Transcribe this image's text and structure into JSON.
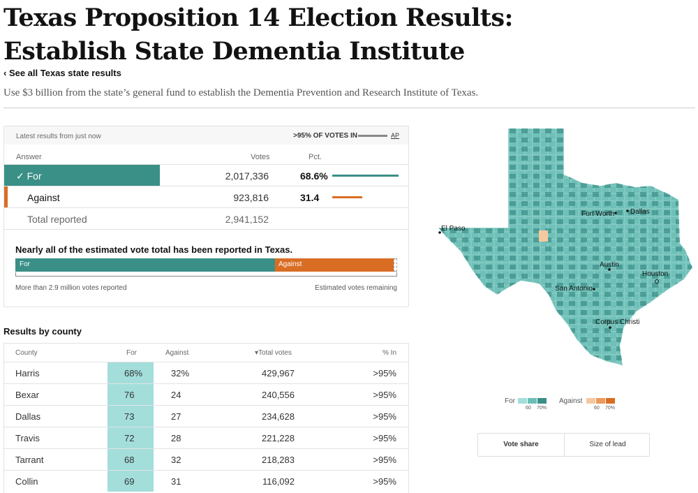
{
  "headline": "Texas Proposition 14 Election Results: Establish State Dementia Institute",
  "back_link": "‹ See all Texas state results",
  "dek": "Use $3 billion from the state’s general fund to establish the Dementia Prevention and Research Institute of Texas.",
  "results": {
    "updated": "Latest results from just now",
    "reporting": ">95% OF VOTES IN",
    "source": "AP",
    "columns": {
      "answer": "Answer",
      "votes": "Votes",
      "pct": "Pct."
    },
    "rows": [
      {
        "answer": "✓ For",
        "votes": "2,017,336",
        "pct": "68.6%",
        "share": 68.6,
        "color": "#3a8f87"
      },
      {
        "answer": "Against",
        "votes": "923,816",
        "pct": "31.4",
        "share": 31.4,
        "color": "#d96d24"
      }
    ],
    "total": {
      "label": "Total reported",
      "votes": "2,941,152"
    }
  },
  "estimate": {
    "title": "Nearly all of the estimated vote total has been reported in Texas.",
    "for_label": "For",
    "against_label": "Against",
    "for_share": 68.6,
    "against_share": 31.4,
    "left_note": "More than 2.9 million votes reported",
    "right_note": "Estimated votes remaining"
  },
  "county": {
    "title": "Results by county",
    "columns": {
      "county": "County",
      "for": "For",
      "against": "Against",
      "total": "▾Total votes",
      "pct_in": "% In"
    },
    "rows": [
      {
        "county": "Harris",
        "for": "68%",
        "against": "32%",
        "total": "429,967",
        "pct_in": ">95%"
      },
      {
        "county": "Bexar",
        "for": "76",
        "against": "24",
        "total": "240,556",
        "pct_in": ">95%"
      },
      {
        "county": "Dallas",
        "for": "73",
        "against": "27",
        "total": "234,628",
        "pct_in": ">95%"
      },
      {
        "county": "Travis",
        "for": "72",
        "against": "28",
        "total": "221,228",
        "pct_in": ">95%"
      },
      {
        "county": "Tarrant",
        "for": "68",
        "against": "32",
        "total": "218,283",
        "pct_in": ">95%"
      },
      {
        "county": "Collin",
        "for": "69",
        "against": "31",
        "total": "116,092",
        "pct_in": ">95%"
      }
    ]
  },
  "map": {
    "cities": [
      "El Paso",
      "Fort Worth",
      "Dallas",
      "Austin",
      "Houston",
      "San Antonio",
      "Corpus Christi"
    ]
  },
  "legend": {
    "for_label": "For",
    "against_label": "Against",
    "for_ticks": [
      "60",
      "70%"
    ],
    "against_ticks": [
      "60",
      "70%"
    ],
    "for_colors": [
      "#a3dedb",
      "#6cbfb8",
      "#3a8f87"
    ],
    "against_colors": [
      "#f5c8a0",
      "#eb9a5c",
      "#d96d24"
    ]
  },
  "toggle": {
    "vote_share": "Vote share",
    "size_of_lead": "Size of lead"
  }
}
